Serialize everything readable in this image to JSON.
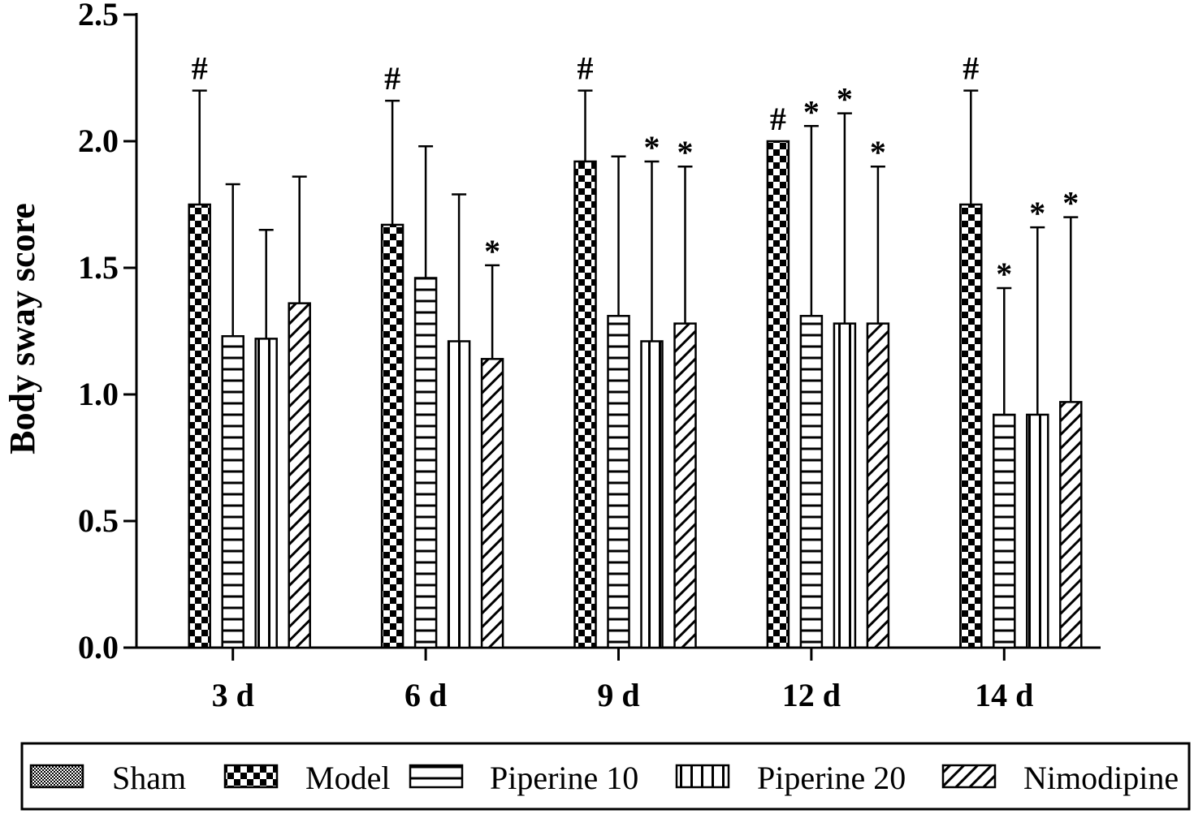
{
  "chart_data": {
    "type": "bar",
    "title": "",
    "xlabel": "",
    "ylabel": "Body sway score",
    "ylim": [
      0,
      2.5
    ],
    "yticks": [
      "0.0",
      "0.5",
      "1.0",
      "1.5",
      "2.0",
      "2.5"
    ],
    "categories": [
      "3 d",
      "6 d",
      "9 d",
      "12 d",
      "14 d"
    ],
    "grid": false,
    "legend_position": "bottom",
    "series": [
      {
        "name": "Sham",
        "pattern": "sham-dots",
        "values": [
          0,
          0,
          0,
          0,
          0
        ],
        "errors": [
          0,
          0,
          0,
          0,
          0
        ],
        "marks": [
          "",
          "",
          "",
          "",
          ""
        ]
      },
      {
        "name": "Model",
        "pattern": "checker",
        "values": [
          1.75,
          1.67,
          1.92,
          2.0,
          1.75
        ],
        "errors": [
          0.45,
          0.49,
          0.28,
          0,
          0.45
        ],
        "marks": [
          "#",
          "#",
          "#",
          "#",
          "#"
        ]
      },
      {
        "name": "Piperine 10",
        "pattern": "horizontal-lines",
        "values": [
          1.23,
          1.46,
          1.31,
          1.31,
          0.92
        ],
        "errors": [
          0.6,
          0.52,
          0.63,
          0.75,
          0.5
        ],
        "marks": [
          "",
          "",
          "",
          "*",
          "*"
        ]
      },
      {
        "name": "Piperine 20",
        "pattern": "vertical-lines",
        "values": [
          1.22,
          1.21,
          1.21,
          1.28,
          0.92
        ],
        "errors": [
          0.43,
          0.58,
          0.71,
          0.83,
          0.74
        ],
        "marks": [
          "",
          "",
          "*",
          "*",
          "*"
        ]
      },
      {
        "name": "Nimodipine",
        "pattern": "diagonal-lines",
        "values": [
          1.36,
          1.14,
          1.28,
          1.28,
          0.97
        ],
        "errors": [
          0.5,
          0.37,
          0.62,
          0.62,
          0.73
        ],
        "marks": [
          "",
          "*",
          "*",
          "*",
          "*"
        ]
      }
    ]
  }
}
